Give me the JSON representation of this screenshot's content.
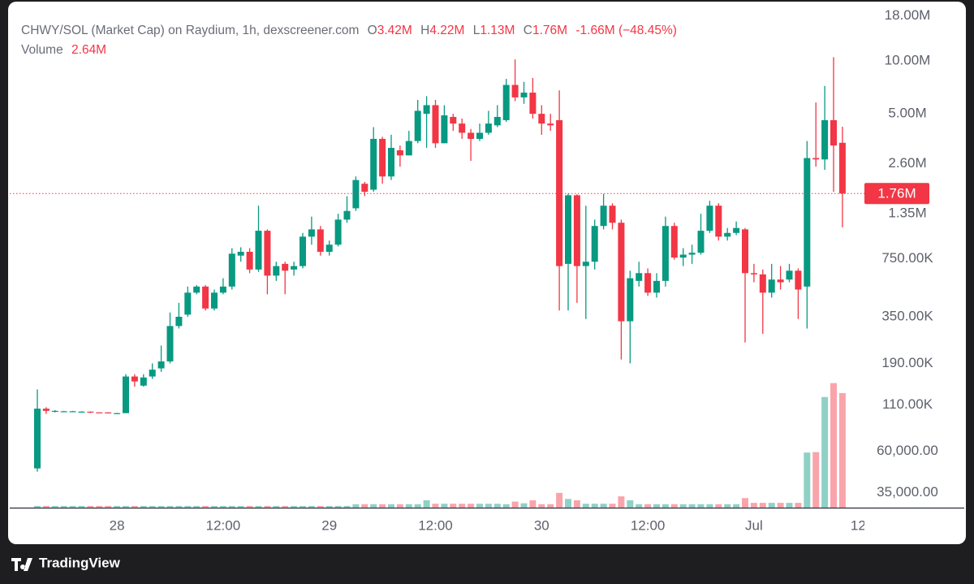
{
  "chart_data": {
    "type": "candlestick",
    "title": "CHWY/SOL (Market Cap) on Raydium, 1h, dexscreener.com",
    "ohlc_legend": [
      {
        "key": "O",
        "value": "3.42M"
      },
      {
        "key": "H",
        "value": "4.22M"
      },
      {
        "key": "L",
        "value": "1.13M"
      },
      {
        "key": "C",
        "value": "1.76M"
      }
    ],
    "change": "-1.66M",
    "change_pct": "(−48.45%)",
    "volume_title": "Volume",
    "volume_label": "2.64M",
    "last_price_label": "1.76M",
    "log_scale": true,
    "up_color": "#089981",
    "down_color": "#f23645",
    "categories": [
      null,
      null,
      null,
      null,
      null,
      null,
      null,
      null,
      null,
      "28",
      null,
      null,
      null,
      null,
      null,
      null,
      null,
      null,
      null,
      null,
      null,
      "12:00",
      null,
      null,
      null,
      null,
      null,
      null,
      null,
      null,
      null,
      null,
      null,
      "29",
      null,
      null,
      null,
      null,
      null,
      null,
      null,
      null,
      null,
      null,
      null,
      "12:00",
      null,
      null,
      null,
      null,
      null,
      null,
      null,
      null,
      null,
      null,
      null,
      "30",
      null,
      null,
      null,
      null,
      null,
      null,
      null,
      null,
      null,
      null,
      null,
      "12:00",
      null,
      null,
      null,
      null,
      null,
      null,
      null,
      null,
      null,
      null,
      null,
      "Jul",
      null,
      null,
      null,
      null,
      null,
      null,
      null,
      null,
      null,
      null,
      null,
      "12:"
    ],
    "open": [
      48000,
      105000,
      101000,
      101000,
      101000,
      101000,
      101000,
      100000,
      100000,
      99000,
      99000,
      160000,
      142000,
      160000,
      178000,
      195000,
      310000,
      360000,
      480000,
      520000,
      390000,
      480000,
      520000,
      780000,
      820000,
      650000,
      1080000,
      600000,
      700000,
      650000,
      680000,
      1000000,
      1100000,
      820000,
      900000,
      1250000,
      1450000,
      2000000,
      1850000,
      3600000,
      2200000,
      3100000,
      2900000,
      3500000,
      5000000,
      5600000,
      3400000,
      4800000,
      4400000,
      3900000,
      3600000,
      3900000,
      4300000,
      4600000,
      7300000,
      6200000,
      6600000,
      5000000,
      4400000,
      4600000,
      700000,
      1720000,
      680000,
      720000,
      1150000,
      1500000,
      1200000,
      330000,
      560000,
      620000,
      480000,
      560000,
      1150000,
      760000,
      790000,
      810000,
      1080000,
      1500000,
      1000000,
      1050000,
      1100000,
      620000,
      610000,
      480000,
      570000,
      570000,
      640000,
      520000,
      2800000,
      2750000,
      4600000,
      3420000,
      null,
      null
    ],
    "high": [
      135000,
      107000,
      103000,
      102000,
      102000,
      101500,
      101000,
      100000,
      100000,
      99500,
      165000,
      165000,
      165000,
      190000,
      240000,
      370000,
      420000,
      520000,
      530000,
      530000,
      500000,
      580000,
      860000,
      870000,
      860000,
      1500000,
      1100000,
      720000,
      720000,
      720000,
      1050000,
      1300000,
      1150000,
      950000,
      1350000,
      1700000,
      2200000,
      2050000,
      4200000,
      3700000,
      3800000,
      3300000,
      4000000,
      6000000,
      6300000,
      6000000,
      5600000,
      5000000,
      4700000,
      4100000,
      4400000,
      5200000,
      5600000,
      7900000,
      10200000,
      7600000,
      8000000,
      5600000,
      5000000,
      6800000,
      1760000,
      1740000,
      1500000,
      1250000,
      1750000,
      1550000,
      1250000,
      640000,
      720000,
      660000,
      620000,
      1300000,
      1200000,
      860000,
      900000,
      1350000,
      1600000,
      1550000,
      1120000,
      1220000,
      1120000,
      700000,
      650000,
      700000,
      680000,
      700000,
      660000,
      3500000,
      5800000,
      7200000,
      10500000,
      4220000,
      null,
      null
    ],
    "low": [
      46000,
      98000,
      100000,
      100500,
      100500,
      100000,
      99000,
      99000,
      98500,
      98500,
      99000,
      140000,
      140000,
      155000,
      170000,
      190000,
      300000,
      350000,
      470000,
      380000,
      380000,
      470000,
      500000,
      720000,
      620000,
      630000,
      470000,
      560000,
      470000,
      600000,
      660000,
      900000,
      780000,
      780000,
      880000,
      1200000,
      1400000,
      1700000,
      1800000,
      2000000,
      2100000,
      2500000,
      2900000,
      3400000,
      3200000,
      3200000,
      3400000,
      4000000,
      3600000,
      2700000,
      3500000,
      3800000,
      4200000,
      4500000,
      5900000,
      5700000,
      4700000,
      3800000,
      4000000,
      380000,
      380000,
      420000,
      340000,
      650000,
      1100000,
      1100000,
      200000,
      190000,
      520000,
      460000,
      450000,
      520000,
      740000,
      680000,
      700000,
      790000,
      1050000,
      950000,
      950000,
      1020000,
      250000,
      550000,
      280000,
      450000,
      500000,
      550000,
      340000,
      300000,
      2500000,
      2400000,
      1800000,
      1130000,
      null,
      null
    ],
    "close": [
      105000,
      102000,
      102000,
      101500,
      101500,
      101000,
      100000,
      99500,
      99000,
      99000,
      160000,
      150000,
      158000,
      175000,
      195000,
      310000,
      350000,
      480000,
      520000,
      390000,
      480000,
      520000,
      800000,
      820000,
      650000,
      1080000,
      600000,
      680000,
      640000,
      680000,
      1000000,
      1100000,
      820000,
      900000,
      1250000,
      1400000,
      2100000,
      1800000,
      3600000,
      2200000,
      3200000,
      2900000,
      3500000,
      5200000,
      5600000,
      3400000,
      4900000,
      4400000,
      3900000,
      3600000,
      3900000,
      4400000,
      4800000,
      7300000,
      6200000,
      6600000,
      5000000,
      4400000,
      4300000,
      680000,
      1720000,
      680000,
      720000,
      1150000,
      1500000,
      1200000,
      330000,
      580000,
      620000,
      480000,
      560000,
      1150000,
      760000,
      790000,
      810000,
      1080000,
      1500000,
      1000000,
      1050000,
      1120000,
      620000,
      610000,
      480000,
      570000,
      550000,
      640000,
      500000,
      2800000,
      2750000,
      4600000,
      3300000,
      1760000,
      null,
      null
    ],
    "volume": [
      40000,
      40000,
      40000,
      40000,
      40000,
      40000,
      40000,
      40000,
      40000,
      40000,
      40000,
      40000,
      40000,
      40000,
      40000,
      40000,
      40000,
      40000,
      40000,
      40000,
      40000,
      40000,
      40000,
      40000,
      40000,
      40000,
      40000,
      40000,
      40000,
      40000,
      40000,
      40000,
      40000,
      40000,
      40000,
      40000,
      80000,
      80000,
      80000,
      80000,
      80000,
      80000,
      80000,
      80000,
      170000,
      90000,
      90000,
      90000,
      90000,
      90000,
      90000,
      90000,
      90000,
      80000,
      140000,
      100000,
      170000,
      80000,
      80000,
      340000,
      200000,
      170000,
      90000,
      90000,
      90000,
      90000,
      260000,
      170000,
      80000,
      80000,
      80000,
      80000,
      80000,
      80000,
      80000,
      80000,
      80000,
      80000,
      80000,
      80000,
      220000,
      110000,
      110000,
      110000,
      110000,
      110000,
      110000,
      1270000,
      1280000,
      2550000,
      2870000,
      2640000,
      null,
      null
    ],
    "ylim": [
      28700,
      20400000
    ],
    "yticks": [
      {
        "value": 18000000,
        "label": "18.00M"
      },
      {
        "value": 10000000,
        "label": "10.00M"
      },
      {
        "value": 5000000,
        "label": "5.00M"
      },
      {
        "value": 2600000,
        "label": "2.60M"
      },
      {
        "value": 1350000,
        "label": "1.35M"
      },
      {
        "value": 750000,
        "label": "750.00K"
      },
      {
        "value": 350000,
        "label": "350.00K"
      },
      {
        "value": 190000,
        "label": "190.00K"
      },
      {
        "value": 110000,
        "label": "110.00K"
      },
      {
        "value": 60000,
        "label": "60,000.00"
      },
      {
        "value": 35000,
        "label": "35,000.00"
      }
    ],
    "volume_ylim": [
      0,
      11550000
    ]
  },
  "brand": "TradingView"
}
